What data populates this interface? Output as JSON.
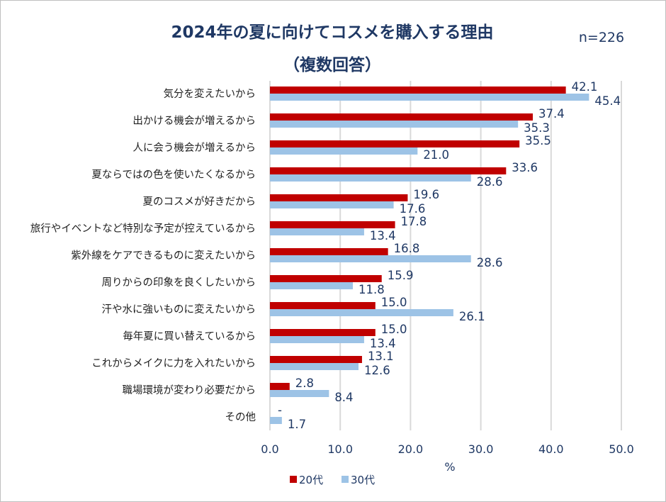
{
  "chart_data": {
    "type": "bar",
    "orientation": "horizontal",
    "title": "2024年の夏に向けてコスメを購入する理由",
    "subtitle": "（複数回答）",
    "note": "n=226",
    "xlabel": "%",
    "ylabel": "",
    "xlim": [
      0,
      50
    ],
    "xticks": [
      "0.0",
      "10.0",
      "20.0",
      "30.0",
      "40.0",
      "50.0"
    ],
    "grid": true,
    "legend_position": "bottom",
    "categories": [
      "気分を変えたいから",
      "出かける機会が増えるから",
      "人に会う機会が増えるから",
      "夏ならではの色を使いたくなるから",
      "夏のコスメが好きだから",
      "旅行やイベントなど特別な予定が控えているから",
      "紫外線をケアできるものに変えたいから",
      "周りからの印象を良くしたいから",
      "汗や水に強いものに変えたいから",
      "毎年夏に買い替えているから",
      "これからメイクに力を入れたいから",
      "職場環境が変わり必要だから",
      "その他"
    ],
    "series": [
      {
        "name": "20代",
        "color": "#c00000",
        "values": [
          42.1,
          37.4,
          35.5,
          33.6,
          19.6,
          17.8,
          16.8,
          15.9,
          15.0,
          15.0,
          13.1,
          2.8,
          null
        ],
        "labels": [
          "42.1",
          "37.4",
          "35.5",
          "33.6",
          "19.6",
          "17.8",
          "16.8",
          "15.9",
          "15.0",
          "15.0",
          "13.1",
          "2.8",
          "-"
        ]
      },
      {
        "name": "30代",
        "color": "#9dc3e6",
        "values": [
          45.4,
          35.3,
          21.0,
          28.6,
          17.6,
          13.4,
          28.6,
          11.8,
          26.1,
          13.4,
          12.6,
          8.4,
          1.7
        ],
        "labels": [
          "45.4",
          "35.3",
          "21.0",
          "28.6",
          "17.6",
          "13.4",
          "28.6",
          "11.8",
          "26.1",
          "13.4",
          "12.6",
          "8.4",
          "1.7"
        ]
      }
    ]
  }
}
